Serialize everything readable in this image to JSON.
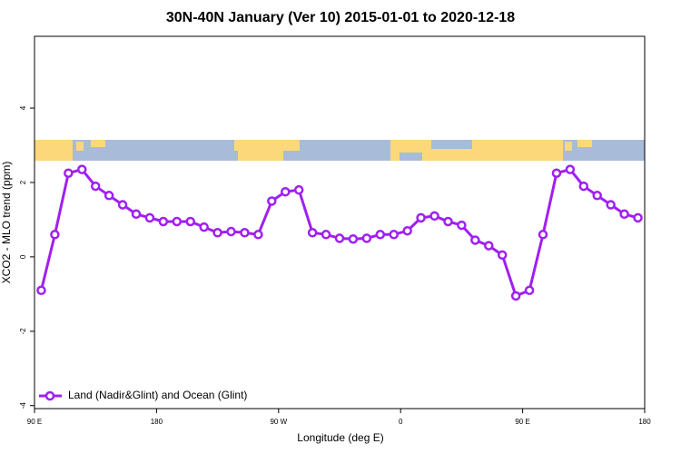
{
  "chart_data": {
    "type": "line",
    "title": "30N-40N January (Ver 10)   2015-01-01 to 2020-12-18",
    "xlabel": "Longitude (deg E)",
    "ylabel": "XCO2 - MLO trend (ppm)",
    "x": [
      95,
      105,
      115,
      125,
      135,
      145,
      155,
      165,
      175,
      185,
      195,
      205,
      215,
      225,
      235,
      245,
      255,
      265,
      275,
      285,
      295,
      305,
      315,
      325,
      335,
      345,
      355,
      365,
      375,
      385,
      395,
      405,
      415,
      425,
      435,
      445,
      455,
      465,
      475,
      485,
      495,
      505,
      515,
      525,
      535
    ],
    "series": [
      {
        "name": "Land (Nadir&Glint) and Ocean (Glint)",
        "color": "#a020f0",
        "values": [
          -0.9,
          0.6,
          2.25,
          2.35,
          1.9,
          1.65,
          1.4,
          1.15,
          1.05,
          0.95,
          0.95,
          0.95,
          0.8,
          0.65,
          0.68,
          0.65,
          0.6,
          1.5,
          1.75,
          1.8,
          0.65,
          0.6,
          0.5,
          0.48,
          0.5,
          0.6,
          0.6,
          0.7,
          1.05,
          1.1,
          0.95,
          0.85,
          0.45,
          0.3,
          0.05,
          -1.05,
          -0.9,
          0.6,
          2.25,
          2.35,
          1.9,
          1.65,
          1.4,
          1.15,
          1.05
        ]
      }
    ],
    "xlim": [
      90,
      540
    ],
    "xticks": [
      {
        "value": 90,
        "label": "90 E"
      },
      180,
      {
        "value": 270,
        "label": "90 W"
      },
      {
        "value": 360,
        "label": "0"
      },
      {
        "value": 450,
        "label": "90 E"
      },
      {
        "value": 540,
        "label": "180"
      }
    ],
    "ylim": [
      -4.08,
      5.93
    ],
    "yticks": [
      -4,
      -2,
      0,
      2,
      4
    ],
    "legend": "bottom-left",
    "grid": false
  }
}
